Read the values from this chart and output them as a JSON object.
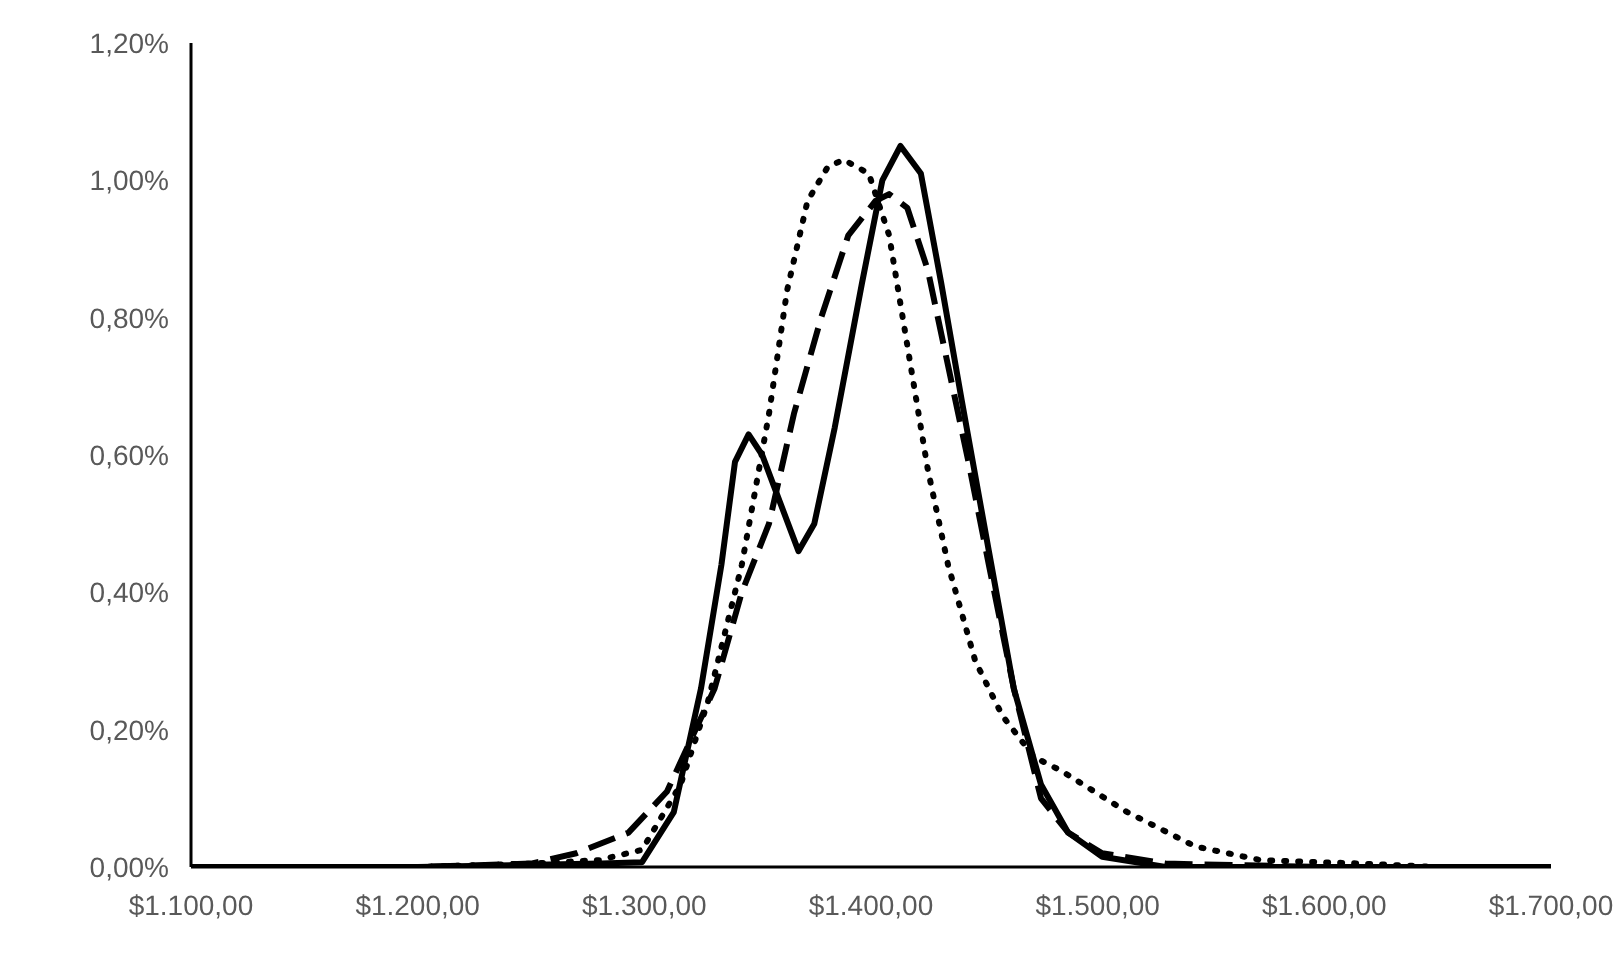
{
  "chart_data": {
    "type": "line",
    "xlim": [
      1100,
      1700
    ],
    "ylim": [
      0,
      1.2
    ],
    "xticks": [
      {
        "value": 1100,
        "label": "$1.100,00"
      },
      {
        "value": 1200,
        "label": "$1.200,00"
      },
      {
        "value": 1300,
        "label": "$1.300,00"
      },
      {
        "value": 1400,
        "label": "$1.400,00"
      },
      {
        "value": 1500,
        "label": "$1.500,00"
      },
      {
        "value": 1600,
        "label": "$1.600,00"
      },
      {
        "value": 1700,
        "label": "$1.700,00"
      }
    ],
    "yticks": [
      {
        "value": 0,
        "label": "0,00%"
      },
      {
        "value": 0.2,
        "label": "0,20%"
      },
      {
        "value": 0.4,
        "label": "0,40%"
      },
      {
        "value": 0.6,
        "label": "0,60%"
      },
      {
        "value": 0.8,
        "label": "0,80%"
      },
      {
        "value": 1.0,
        "label": "1,00%"
      },
      {
        "value": 1.2,
        "label": "1,20%"
      }
    ],
    "grid": false,
    "series": [
      {
        "color": "#000000",
        "line_style": "solid",
        "x": [
          1100,
          1200,
          1281,
          1299,
          1313,
          1325,
          1334,
          1340,
          1346,
          1352,
          1360,
          1368,
          1375,
          1384,
          1396,
          1405,
          1413,
          1422,
          1431,
          1440,
          1452,
          1463,
          1475,
          1487,
          1502,
          1530,
          1600,
          1700
        ],
        "values": [
          0,
          0,
          0.005,
          0.007,
          0.08,
          0.26,
          0.44,
          0.59,
          0.63,
          0.6,
          0.53,
          0.46,
          0.5,
          0.64,
          0.85,
          1.0,
          1.05,
          1.01,
          0.85,
          0.68,
          0.46,
          0.26,
          0.12,
          0.05,
          0.015,
          0,
          0,
          0
        ]
      },
      {
        "color": "#000000",
        "line_style": "dashed",
        "x": [
          1100,
          1200,
          1250,
          1270,
          1293,
          1310,
          1331,
          1343,
          1355,
          1366,
          1378,
          1390,
          1402,
          1408,
          1416,
          1425,
          1434,
          1443,
          1452,
          1463,
          1475,
          1487,
          1502,
          1530,
          1600,
          1700
        ],
        "values": [
          0,
          0,
          0.005,
          0.02,
          0.05,
          0.11,
          0.26,
          0.4,
          0.5,
          0.66,
          0.8,
          0.92,
          0.97,
          0.98,
          0.96,
          0.87,
          0.73,
          0.59,
          0.44,
          0.26,
          0.1,
          0.05,
          0.02,
          0.005,
          0,
          0
        ]
      },
      {
        "color": "#000000",
        "line_style": "dotted",
        "x": [
          1100,
          1200,
          1250,
          1280,
          1299,
          1316,
          1328,
          1343,
          1355,
          1363,
          1372,
          1381,
          1388,
          1399,
          1408,
          1416,
          1425,
          1434,
          1446,
          1458,
          1472,
          1484,
          1513,
          1543,
          1572,
          1616,
          1650,
          1700
        ],
        "values": [
          0,
          0,
          0.005,
          0.01,
          0.025,
          0.12,
          0.24,
          0.44,
          0.66,
          0.84,
          0.97,
          1.02,
          1.03,
          1.01,
          0.92,
          0.76,
          0.58,
          0.44,
          0.3,
          0.22,
          0.16,
          0.14,
          0.08,
          0.03,
          0.01,
          0.005,
          0,
          0
        ]
      }
    ]
  }
}
